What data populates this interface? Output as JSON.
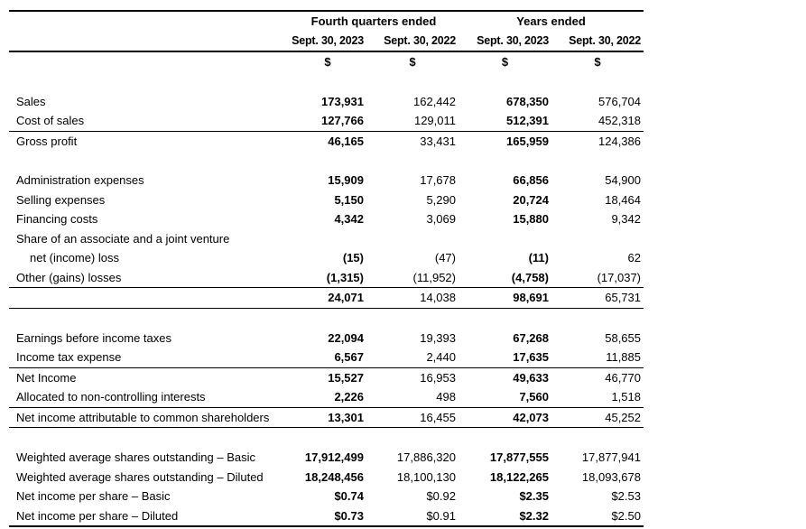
{
  "table": {
    "column_groups": [
      {
        "label": "Fourth quarters ended"
      },
      {
        "label": "Years ended"
      }
    ],
    "column_headers": [
      "Sept. 30, 2023",
      "Sept. 30, 2022",
      "Sept. 30, 2023",
      "Sept. 30, 2022"
    ],
    "currency_symbols": [
      "$",
      "$",
      "$",
      "$"
    ],
    "bold_value_columns": [
      0,
      2
    ],
    "rows": [
      {
        "spacer": true
      },
      {
        "label": "Sales",
        "values": [
          "173,931",
          "162,442",
          "678,350",
          "576,704"
        ]
      },
      {
        "label": "Cost of sales",
        "values": [
          "127,766",
          "129,011",
          "512,391",
          "452,318"
        ],
        "rule_below": true
      },
      {
        "label": "Gross profit",
        "values": [
          "46,165",
          "33,431",
          "165,959",
          "124,386"
        ]
      },
      {
        "spacer": true
      },
      {
        "label": "Administration expenses",
        "values": [
          "15,909",
          "17,678",
          "66,856",
          "54,900"
        ]
      },
      {
        "label": "Selling expenses",
        "values": [
          "5,150",
          "5,290",
          "20,724",
          "18,464"
        ]
      },
      {
        "label": "Financing costs",
        "values": [
          "4,342",
          "3,069",
          "15,880",
          "9,342"
        ]
      },
      {
        "label": "Share of an associate and a joint venture",
        "values": [
          "",
          "",
          "",
          ""
        ]
      },
      {
        "label": "net (income) loss",
        "indent": true,
        "values": [
          "(15)",
          "(47)",
          "(11)",
          "62"
        ]
      },
      {
        "label": "Other (gains) losses",
        "values": [
          "(1,315)",
          "(11,952)",
          "(4,758)",
          "(17,037)"
        ],
        "rule_below": true
      },
      {
        "label": "",
        "values": [
          "24,071",
          "14,038",
          "98,691",
          "65,731"
        ],
        "rule_below": true
      },
      {
        "spacer": true
      },
      {
        "label": "Earnings before income taxes",
        "values": [
          "22,094",
          "19,393",
          "67,268",
          "58,655"
        ]
      },
      {
        "label": "Income tax expense",
        "values": [
          "6,567",
          "2,440",
          "17,635",
          "11,885"
        ],
        "rule_below": true
      },
      {
        "label": "Net Income",
        "values": [
          "15,527",
          "16,953",
          "49,633",
          "46,770"
        ]
      },
      {
        "label": "Allocated to non-controlling interests",
        "values": [
          "2,226",
          "498",
          "7,560",
          "1,518"
        ],
        "rule_below": true
      },
      {
        "label": "Net income attributable to common shareholders",
        "values": [
          "13,301",
          "16,455",
          "42,073",
          "45,252"
        ],
        "rule_below": true
      },
      {
        "spacer": true
      },
      {
        "label": "Weighted average shares outstanding – Basic",
        "values": [
          "17,912,499",
          "17,886,320",
          "17,877,555",
          "17,877,941"
        ]
      },
      {
        "label": "Weighted average shares outstanding – Diluted",
        "values": [
          "18,248,456",
          "18,100,130",
          "18,122,265",
          "18,093,678"
        ]
      },
      {
        "label": "Net income per share – Basic",
        "values": [
          "$0.74",
          "$0.92",
          "$2.35",
          "$2.53"
        ]
      },
      {
        "label": "Net income per share – Diluted",
        "values": [
          "$0.73",
          "$0.91",
          "$2.32",
          "$2.50"
        ]
      }
    ]
  }
}
